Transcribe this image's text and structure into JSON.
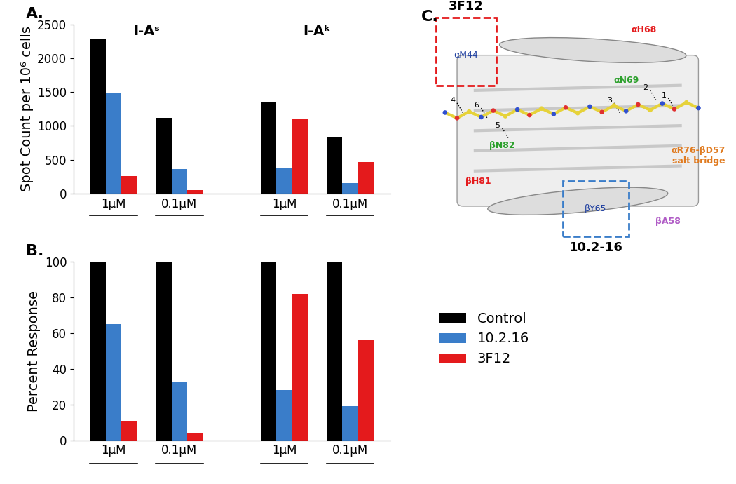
{
  "chart_data": [
    {
      "type": "bar",
      "title": "A.",
      "ylabel": "Spot Count per 10⁶ cells",
      "groups": [
        "I-Aˢ",
        "I-Aᵏ"
      ],
      "categories": [
        "1µM",
        "0.1µM",
        "1µM",
        "0.1µM"
      ],
      "series": [
        {
          "name": "Control",
          "color": "#000000",
          "values": [
            2280,
            1120,
            1360,
            840
          ]
        },
        {
          "name": "10.2.16",
          "color": "#3a7dc9",
          "values": [
            1480,
            360,
            380,
            160
          ]
        },
        {
          "name": "3F12",
          "color": "#e41a1c",
          "values": [
            260,
            50,
            1110,
            470
          ]
        }
      ],
      "ylim": [
        0,
        2500
      ],
      "yticks": [
        0,
        500,
        1000,
        1500,
        2000,
        2500
      ]
    },
    {
      "type": "bar",
      "title": "B.",
      "ylabel": "Percent Response",
      "categories": [
        "1µM",
        "0.1µM",
        "1µM",
        "0.1µM"
      ],
      "series": [
        {
          "name": "Control",
          "color": "#000000",
          "values": [
            100,
            100,
            100,
            100
          ]
        },
        {
          "name": "10.2.16",
          "color": "#3a7dc9",
          "values": [
            65,
            33,
            28,
            19
          ]
        },
        {
          "name": "3F12",
          "color": "#e41a1c",
          "values": [
            11,
            4,
            82,
            56
          ]
        }
      ],
      "ylim": [
        0,
        100
      ],
      "yticks": [
        0,
        20,
        40,
        60,
        80,
        100
      ],
      "legend": "center left"
    }
  ],
  "diagram": {
    "title": "C.",
    "boxes": [
      {
        "label": "3F12",
        "color": "#e41a1c",
        "residue": "αM44"
      },
      {
        "label": "10.2-16",
        "color": "#3a7dc9",
        "residue": "βY65"
      }
    ],
    "residues": [
      {
        "label": "αH68",
        "color": "#e41a1c"
      },
      {
        "label": "αN69",
        "color": "#2ca02c"
      },
      {
        "label": "βN82",
        "color": "#2ca02c"
      },
      {
        "label": "βH81",
        "color": "#e41a1c"
      },
      {
        "label": "βA58",
        "color": "#b05cc6"
      },
      {
        "label": "αR76-βD57\nsalt bridge",
        "color": "#e07b20"
      }
    ],
    "hbonds": [
      "1",
      "2",
      "3",
      "4",
      "5",
      "6"
    ]
  }
}
